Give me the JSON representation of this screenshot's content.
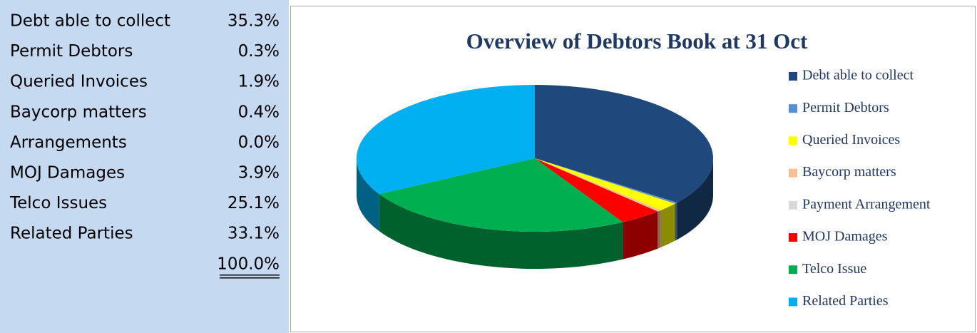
{
  "table": {
    "rows": [
      [
        "Debt able to collect",
        "35.3%"
      ],
      [
        "Permit Debtors",
        "0.3%"
      ],
      [
        "Queried Invoices",
        "1.9%"
      ],
      [
        "Baycorp matters",
        "0.4%"
      ],
      [
        "Arrangements",
        "0.0%"
      ],
      [
        "MOJ Damages",
        "3.9%"
      ],
      [
        "Telco Issues",
        "25.1%"
      ],
      [
        "Related Parties",
        "33.1%"
      ]
    ],
    "total": "100.0%"
  },
  "chart_data": {
    "type": "pie",
    "title": "Overview of Debtors Book at 31 Oct",
    "categories": [
      "Debt able to collect",
      "Permit Debtors",
      "Queried Invoices",
      "Baycorp matters",
      "Payment Arrangement",
      "MOJ Damages",
      "Telco Issue",
      "Related Parties"
    ],
    "values": [
      35.3,
      0.3,
      1.9,
      0.4,
      0.0,
      3.9,
      25.1,
      33.1
    ],
    "colors": [
      "#1f497d",
      "#558ed5",
      "#ffff00",
      "#fac090",
      "#d9d9d9",
      "#ff0000",
      "#00b050",
      "#00b0f0"
    ],
    "legend": "right"
  }
}
